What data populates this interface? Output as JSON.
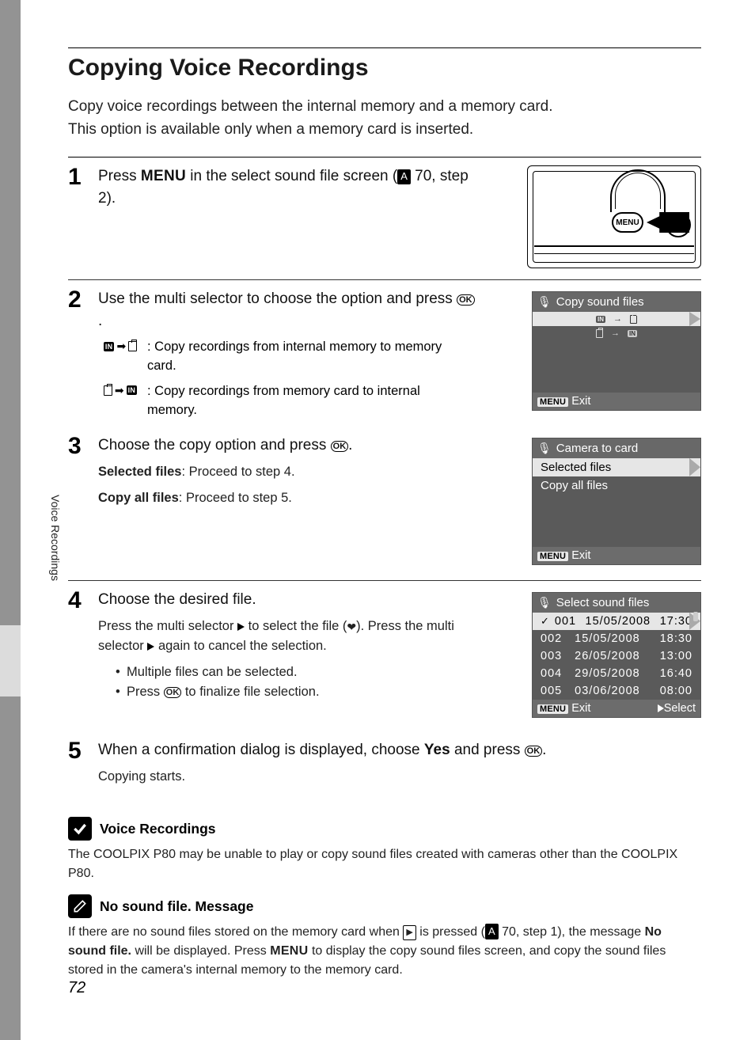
{
  "page_number": "72",
  "sidebar_label": "Voice Recordings",
  "title": "Copying Voice Recordings",
  "intro_line1": "Copy voice recordings between the internal memory and a memory card.",
  "intro_line2": "This option is available only when a memory card is inserted.",
  "menu_label": "MENU",
  "ok_label": "OK",
  "ref_icon": "A",
  "step1": {
    "n": "1",
    "text_a": "Press ",
    "text_b": " in the select sound file screen (",
    "text_c": " 70, step 2)."
  },
  "step2": {
    "n": "2",
    "title": "Use the multi selector to choose the option and press ",
    "opt1": ": Copy recordings from internal memory to memory card.",
    "opt2": ": Copy recordings from memory card to internal memory."
  },
  "step3": {
    "n": "3",
    "title_a": "Choose the copy option and press ",
    "title_b": ".",
    "sel_label": "Selected files",
    "sel_txt": ": Proceed to step 4.",
    "all_label": "Copy all files",
    "all_txt": ": Proceed to step 5."
  },
  "step4": {
    "n": "4",
    "title": "Choose the desired file.",
    "body_a": "Press the multi selector ",
    "body_b": " to select the file (",
    "body_c": "). Press the multi selector ",
    "body_d": " again to cancel the selection.",
    "bul1": "Multiple files can be selected.",
    "bul2_a": "Press ",
    "bul2_b": " to finalize file selection."
  },
  "step5": {
    "n": "5",
    "title_a": "When a confirmation dialog is displayed, choose ",
    "title_bold": "Yes",
    "title_b": " and press ",
    "title_c": ".",
    "body": "Copying starts."
  },
  "note1": {
    "title": "Voice Recordings",
    "body": "The COOLPIX P80 may be unable to play or copy sound files created with cameras other than the COOLPIX P80."
  },
  "note2": {
    "title": "No sound file. Message",
    "body_a": "If there are no sound files stored on the memory card when ",
    "body_b": " is pressed (",
    "body_c": " 70, step 1), the message ",
    "body_bold": "No sound file.",
    "body_d": " will be displayed. Press ",
    "body_e": " to display the copy sound files screen, and copy the sound files stored in the camera's internal memory to the memory card."
  },
  "screen1": {
    "title": "Copy sound files",
    "exit": "Exit"
  },
  "screen2": {
    "title": "Camera to card",
    "opt1": "Selected files",
    "opt2": "Copy all files",
    "exit": "Exit"
  },
  "screen3": {
    "title": "Select sound files",
    "exit": "Exit",
    "select": "Select",
    "files": [
      {
        "n": "001",
        "d": "15/05/2008",
        "t": "17:30",
        "sel": true
      },
      {
        "n": "002",
        "d": "15/05/2008",
        "t": "18:30"
      },
      {
        "n": "003",
        "d": "26/05/2008",
        "t": "13:00"
      },
      {
        "n": "004",
        "d": "29/05/2008",
        "t": "16:40"
      },
      {
        "n": "005",
        "d": "03/06/2008",
        "t": "08:00"
      }
    ]
  },
  "colors": {
    "page_bg": "#939393",
    "screen_bg": "#5a5a5a",
    "screen_sel_bg": "#e6e6e6"
  }
}
